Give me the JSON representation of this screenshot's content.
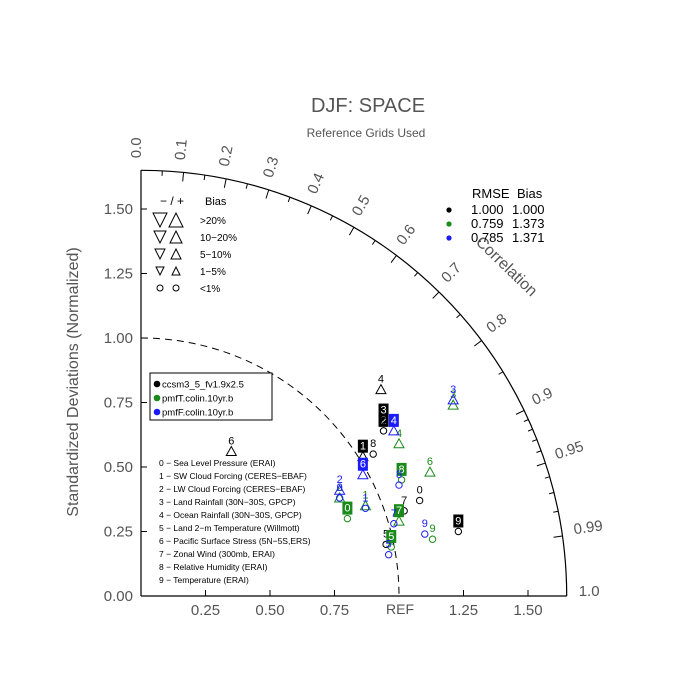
{
  "chart_data": {
    "type": "scatter",
    "subtype": "taylor-diagram",
    "title": "DJF: SPACE",
    "subtitle": "Reference Grids Used",
    "ylabel": "Standardized Deviations (Normalized)",
    "arc_label": "Correlation",
    "ref_label": "REF",
    "std_lim": [
      0,
      1.65
    ],
    "x_ticks": [
      "0.25",
      "0.50",
      "0.75",
      "1.25",
      "1.50"
    ],
    "y_ticks": [
      "0.00",
      "0.25",
      "0.50",
      "0.75",
      "1.00",
      "1.25",
      "1.50"
    ],
    "corr_ticks": [
      "0.0",
      "0.1",
      "0.2",
      "0.3",
      "0.4",
      "0.5",
      "0.6",
      "0.7",
      "0.8",
      "0.9",
      "0.95",
      "0.99",
      "1.0"
    ],
    "bias_legend": {
      "header_minus_plus": "− / +",
      "header_bias": "Bias",
      "rows": [
        ">20%",
        "10−20%",
        "5−10%",
        "1−5%",
        "<1%"
      ]
    },
    "rmse_table": {
      "header_rmse": "RMSE",
      "header_bias": "Bias",
      "rows": [
        {
          "color": "#000000",
          "rmse": "1.000",
          "bias": "1.000"
        },
        {
          "color": "#1a8a1a",
          "rmse": "0.759",
          "bias": "1.373"
        },
        {
          "color": "#1a1aff",
          "rmse": "0.785",
          "bias": "1.371"
        }
      ]
    },
    "case_legend": [
      {
        "name": "ccsm3_5_fv1.9x2.5",
        "color": "#000000"
      },
      {
        "name": "pmfT.colin.10yr.b",
        "color": "#1a8a1a"
      },
      {
        "name": "pmfF.colin.10yr.b",
        "color": "#1a1aff"
      }
    ],
    "variables": [
      "0 − Sea Level Pressure (ERAI)",
      "1 − SW Cloud Forcing (CERES−EBAF)",
      "2 − LW Cloud Forcing (CERES−EBAF)",
      "3 − Land Rainfall (30N−30S, GPCP)",
      "4 − Ocean Rainfall (30N−30S, GPCP)",
      "5 − Land 2−m Temperature (Willmott)",
      "6 − Pacific Surface Stress (5N−5S,ERS)",
      "7 − Zonal Wind (300mb, ERAI)",
      "8 − Relative Humidity (ERAI)",
      "9 − Temperature (ERAI)"
    ],
    "series": [
      {
        "name": "ccsm3_5_fv1.9x2.5",
        "color": "#000000",
        "points": [
          {
            "id": "0",
            "x": 1.08,
            "y": 0.37,
            "bias": "circle",
            "boxed": false
          },
          {
            "id": "1",
            "x": 0.86,
            "y": 0.54,
            "bias": "up",
            "boxed": true
          },
          {
            "id": "2",
            "x": 0.94,
            "y": 0.64,
            "bias": "circle",
            "boxed": true
          },
          {
            "id": "3",
            "x": 0.94,
            "y": 0.68,
            "bias": "circle",
            "boxed": true
          },
          {
            "id": "4",
            "x": 0.93,
            "y": 0.8,
            "bias": "up",
            "boxed": false
          },
          {
            "id": "5",
            "x": 0.95,
            "y": 0.2,
            "bias": "circle",
            "boxed": false
          },
          {
            "id": "6",
            "x": 0.35,
            "y": 0.56,
            "bias": "up",
            "boxed": false
          },
          {
            "id": "7",
            "x": 1.02,
            "y": 0.33,
            "bias": "circle",
            "boxed": false
          },
          {
            "id": "8",
            "x": 0.9,
            "y": 0.55,
            "bias": "circle",
            "boxed": false
          },
          {
            "id": "9",
            "x": 1.23,
            "y": 0.25,
            "bias": "circle",
            "boxed": true
          }
        ]
      },
      {
        "name": "pmfT.colin.10yr.b",
        "color": "#1a8a1a",
        "points": [
          {
            "id": "0",
            "x": 0.8,
            "y": 0.3,
            "bias": "circle",
            "boxed": true
          },
          {
            "id": "1",
            "x": 0.87,
            "y": 0.35,
            "bias": "up",
            "boxed": false
          },
          {
            "id": "2",
            "x": 0.77,
            "y": 0.38,
            "bias": "up",
            "boxed": false
          },
          {
            "id": "3",
            "x": 1.21,
            "y": 0.74,
            "bias": "up",
            "boxed": false
          },
          {
            "id": "4",
            "x": 1.0,
            "y": 0.59,
            "bias": "up",
            "boxed": false
          },
          {
            "id": "5",
            "x": 0.97,
            "y": 0.19,
            "bias": "circle",
            "boxed": true
          },
          {
            "id": "6",
            "x": 1.12,
            "y": 0.48,
            "bias": "up",
            "boxed": false
          },
          {
            "id": "7",
            "x": 1.0,
            "y": 0.29,
            "bias": "up",
            "boxed": true
          },
          {
            "id": "8",
            "x": 1.01,
            "y": 0.45,
            "bias": "circle",
            "boxed": true
          },
          {
            "id": "9",
            "x": 1.13,
            "y": 0.22,
            "bias": "circle",
            "boxed": false
          }
        ]
      },
      {
        "name": "pmfF.colin.10yr.b",
        "color": "#1a1aff",
        "points": [
          {
            "id": "0",
            "x": 0.77,
            "y": 0.38,
            "bias": "circle",
            "boxed": false
          },
          {
            "id": "1",
            "x": 0.87,
            "y": 0.34,
            "bias": "circle",
            "boxed": false
          },
          {
            "id": "2",
            "x": 0.77,
            "y": 0.41,
            "bias": "up",
            "boxed": false
          },
          {
            "id": "3",
            "x": 1.21,
            "y": 0.76,
            "bias": "up",
            "boxed": false
          },
          {
            "id": "4",
            "x": 0.98,
            "y": 0.64,
            "bias": "up",
            "boxed": true
          },
          {
            "id": "5",
            "x": 0.96,
            "y": 0.16,
            "bias": "circle",
            "boxed": false
          },
          {
            "id": "6",
            "x": 0.86,
            "y": 0.47,
            "bias": "up",
            "boxed": true
          },
          {
            "id": "7",
            "x": 0.98,
            "y": 0.28,
            "bias": "circle",
            "boxed": false
          },
          {
            "id": "8",
            "x": 1.0,
            "y": 0.43,
            "bias": "circle",
            "boxed": false
          },
          {
            "id": "9",
            "x": 1.1,
            "y": 0.24,
            "bias": "circle",
            "boxed": false
          }
        ]
      }
    ]
  }
}
